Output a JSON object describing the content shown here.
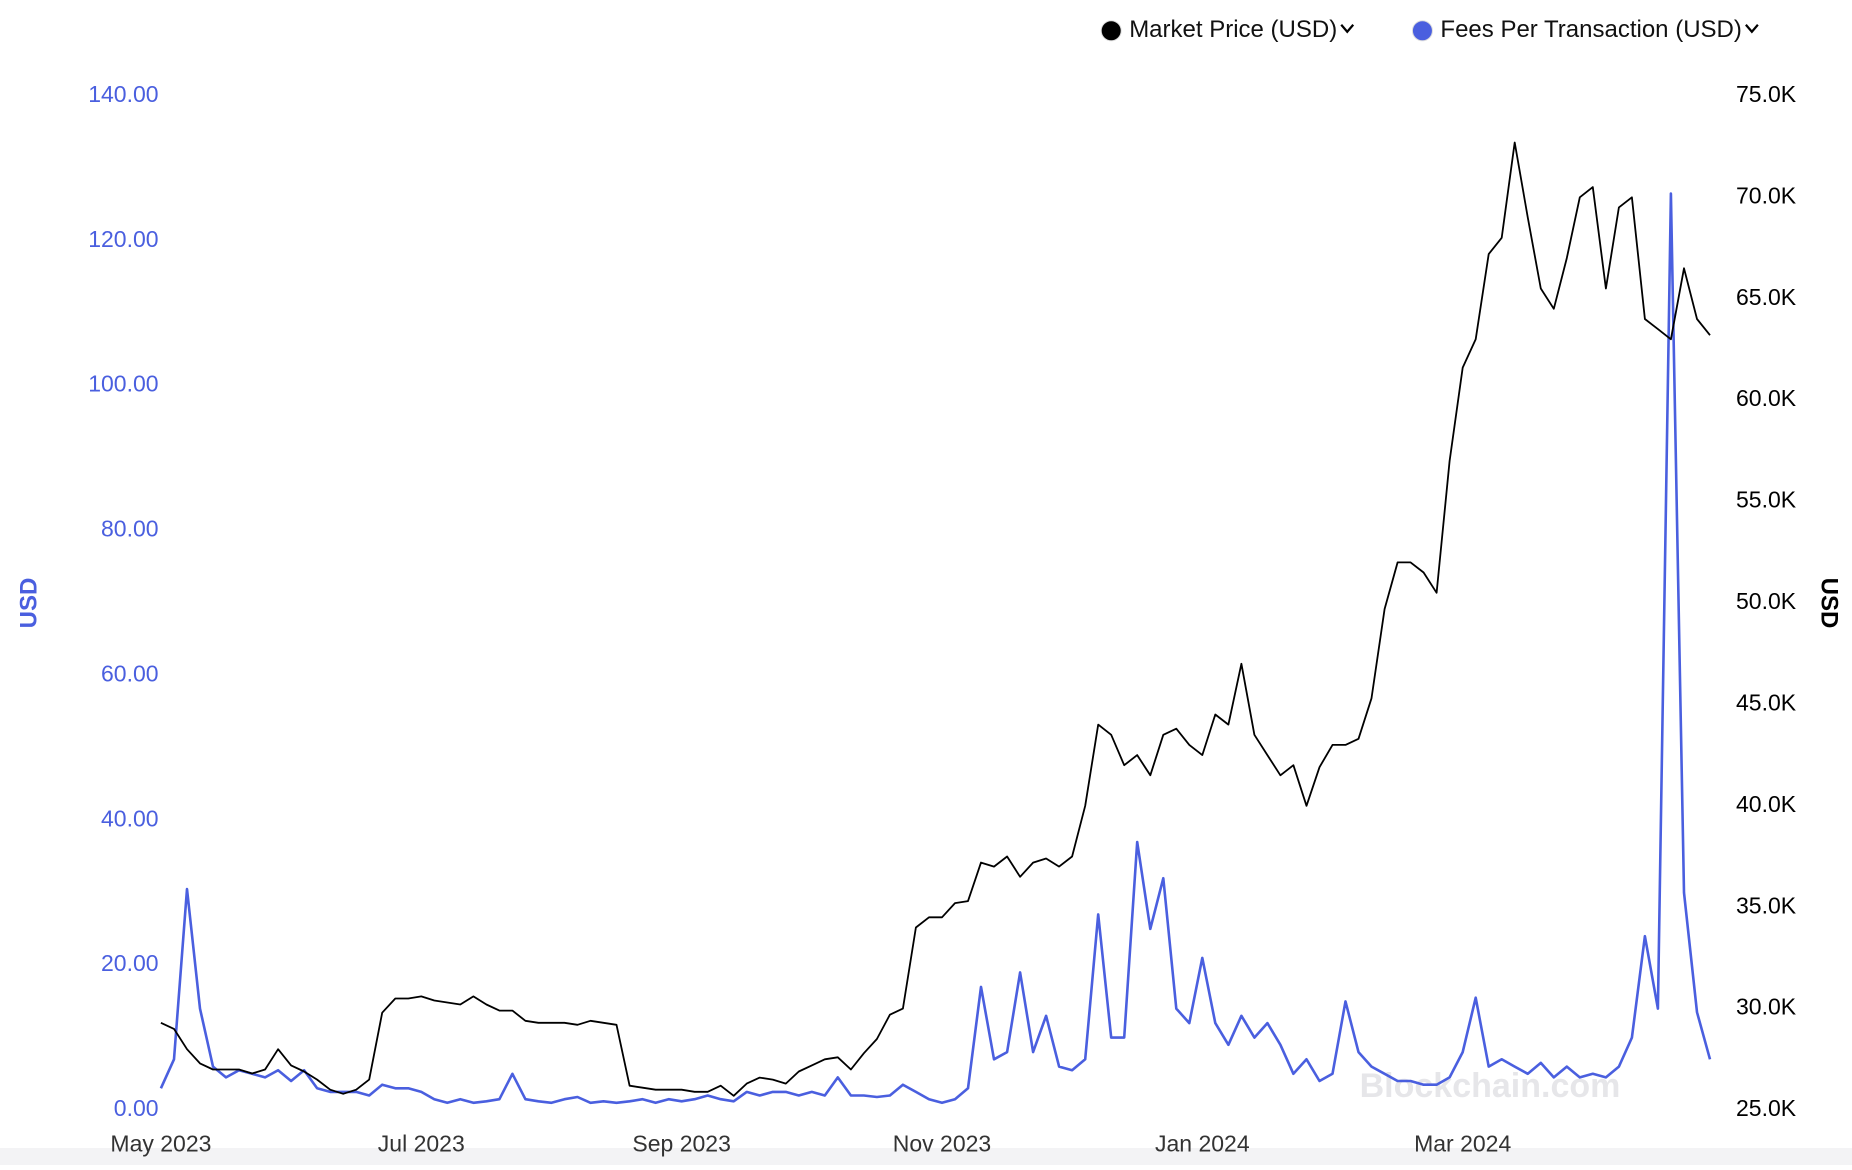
{
  "chart_data": {
    "type": "line",
    "categories": [
      "May 2023",
      null,
      null,
      null,
      null,
      null,
      null,
      null,
      null,
      null,
      null,
      null,
      null,
      null,
      null,
      null,
      null,
      null,
      null,
      null,
      "Jul 2023",
      null,
      null,
      null,
      null,
      null,
      null,
      null,
      null,
      null,
      null,
      null,
      null,
      null,
      null,
      null,
      null,
      null,
      null,
      null,
      "Sep 2023",
      null,
      null,
      null,
      null,
      null,
      null,
      null,
      null,
      null,
      null,
      null,
      null,
      null,
      null,
      null,
      null,
      null,
      null,
      null,
      "Nov 2023",
      null,
      null,
      null,
      null,
      null,
      null,
      null,
      null,
      null,
      null,
      null,
      null,
      null,
      null,
      null,
      null,
      null,
      null,
      null,
      "Jan 2024",
      null,
      null,
      null,
      null,
      null,
      null,
      null,
      null,
      null,
      null,
      null,
      null,
      null,
      null,
      null,
      null,
      null,
      null,
      null,
      "Mar 2024",
      null,
      null,
      null,
      null,
      null,
      null,
      null,
      null,
      null,
      null,
      null,
      null,
      null,
      null,
      null,
      null,
      null,
      null,
      null
    ],
    "series": [
      {
        "name": "Market Price (USD)",
        "color": "#000000",
        "axis": "y2",
        "values": [
          29300,
          29000,
          28000,
          27300,
          27000,
          27000,
          27000,
          26800,
          27000,
          28000,
          27200,
          26900,
          26500,
          26000,
          25800,
          26000,
          26500,
          29800,
          30500,
          30500,
          30600,
          30400,
          30300,
          30200,
          30600,
          30200,
          29900,
          29900,
          29400,
          29300,
          29300,
          29300,
          29200,
          29400,
          29300,
          29200,
          26200,
          26100,
          26000,
          26000,
          26000,
          25900,
          25900,
          26200,
          25700,
          26300,
          26600,
          26500,
          26300,
          26900,
          27200,
          27500,
          27600,
          27000,
          27800,
          28500,
          29700,
          30000,
          34000,
          34500,
          34500,
          35200,
          35300,
          37200,
          37000,
          37500,
          36500,
          37200,
          37400,
          37000,
          37500,
          40000,
          44000,
          43500,
          42000,
          42500,
          41500,
          43500,
          43800,
          43000,
          42500,
          44500,
          44000,
          47000,
          43500,
          42500,
          41500,
          42000,
          40000,
          41900,
          43000,
          43000,
          43300,
          45300,
          49700,
          52000,
          52000,
          51500,
          50500,
          57000,
          61600,
          63000,
          67200,
          68000,
          72700,
          69000,
          65500,
          64500,
          67000,
          70000,
          70500,
          65500,
          69500,
          70000,
          64000,
          63500,
          63000,
          66500,
          64000,
          63200
        ]
      },
      {
        "name": "Fees Per Transaction (USD)",
        "color": "#4a5fdf",
        "values": [
          3.0,
          7.0,
          30.5,
          14.0,
          6.0,
          4.5,
          5.5,
          5.0,
          4.5,
          5.5,
          4.0,
          5.5,
          3.0,
          2.5,
          2.5,
          2.5,
          2.0,
          3.5,
          3.0,
          3.0,
          2.5,
          1.5,
          1.0,
          1.5,
          1.0,
          1.2,
          1.5,
          5.0,
          1.5,
          1.2,
          1.0,
          1.5,
          1.8,
          1.0,
          1.2,
          1.0,
          1.2,
          1.5,
          1.0,
          1.5,
          1.2,
          1.5,
          2.0,
          1.5,
          1.2,
          2.5,
          2.0,
          2.5,
          2.5,
          2.0,
          2.5,
          2.0,
          4.5,
          2.0,
          2.0,
          1.8,
          2.0,
          3.5,
          2.5,
          1.5,
          1.0,
          1.5,
          3.0,
          17.0,
          7.0,
          8.0,
          19.0,
          8.0,
          13.0,
          6.0,
          5.5,
          7.0,
          27.0,
          10.0,
          10.0,
          37.0,
          25.0,
          32.0,
          14.0,
          12.0,
          21.0,
          12.0,
          9.0,
          13.0,
          10.0,
          12.0,
          9.0,
          5.0,
          7.0,
          4.0,
          5.0,
          15.0,
          8.0,
          6.0,
          5.0,
          4.0,
          4.0,
          3.5,
          3.5,
          4.5,
          8.0,
          15.5,
          6.0,
          7.0,
          6.0,
          5.0,
          6.5,
          4.5,
          6.0,
          4.5,
          5.0,
          4.5,
          6.0,
          10.0,
          24.0,
          14.0,
          126.5,
          30.0,
          13.5,
          7.0
        ]
      }
    ],
    "ylim": [
      0,
      140
    ],
    "yticks": [
      {
        "value": 0,
        "label": "0.00"
      },
      {
        "value": 20,
        "label": "20.00"
      },
      {
        "value": 40,
        "label": "40.00"
      },
      {
        "value": 60,
        "label": "60.00"
      },
      {
        "value": 80,
        "label": "80.00"
      },
      {
        "value": 100,
        "label": "100.00"
      },
      {
        "value": 120,
        "label": "120.00"
      },
      {
        "value": 140,
        "label": "140.00"
      }
    ],
    "y2lim": [
      25000,
      75000
    ],
    "y2ticks": [
      {
        "value": 25000,
        "label": "25.0K"
      },
      {
        "value": 30000,
        "label": "30.0K"
      },
      {
        "value": 35000,
        "label": "35.0K"
      },
      {
        "value": 40000,
        "label": "40.0K"
      },
      {
        "value": 45000,
        "label": "45.0K"
      },
      {
        "value": 50000,
        "label": "50.0K"
      },
      {
        "value": 55000,
        "label": "55.0K"
      },
      {
        "value": 60000,
        "label": "60.0K"
      },
      {
        "value": 65000,
        "label": "65.0K"
      },
      {
        "value": 70000,
        "label": "70.0K"
      },
      {
        "value": 75000,
        "label": "75.0K"
      }
    ],
    "ylabel": "USD",
    "y2label": "USD",
    "watermark": "Blockchain.com",
    "legend": "top-right"
  }
}
